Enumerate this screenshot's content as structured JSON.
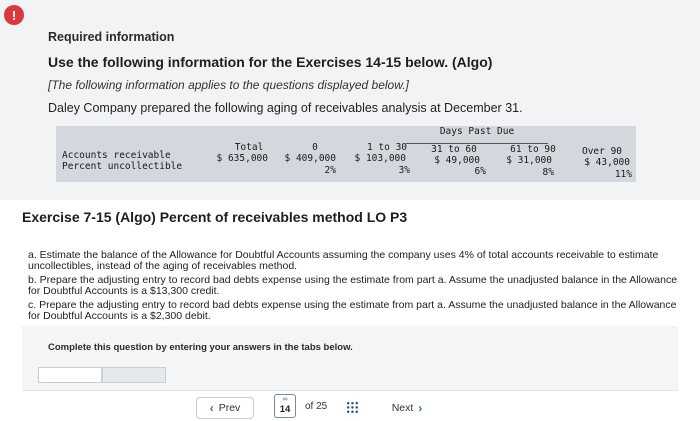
{
  "header": {
    "alert_glyph": "!",
    "required_title": "Required information",
    "use_following": "Use the following information for the Exercises 14-15 below. (Algo)",
    "applies_note": "[The following information applies to the questions displayed below.]",
    "intro": "Daley Company prepared the following aging of receivables analysis at December 31."
  },
  "aging_table": {
    "group_header": "Days Past Due",
    "row_labels": [
      "Accounts receivable",
      "Percent uncollectible"
    ],
    "columns": [
      {
        "header": "Total",
        "amount": "$ 635,000",
        "percent": ""
      },
      {
        "header": "0",
        "amount": "$ 409,000",
        "percent": "2%"
      },
      {
        "header": "1 to 30",
        "amount": "$ 103,000",
        "percent": "3%"
      },
      {
        "header": "31 to 60",
        "amount": "$ 49,000",
        "percent": "6%"
      },
      {
        "header": "61 to 90",
        "amount": "$ 31,000",
        "percent": "8%"
      },
      {
        "header": "Over 90",
        "amount": "$ 43,000",
        "percent": "11%"
      }
    ]
  },
  "exercise": {
    "title": "Exercise 7-15 (Algo) Percent of receivables method LO P3",
    "parts": [
      "a. Estimate the balance of the Allowance for Doubtful Accounts assuming the company uses 4% of total accounts receivable to estimate uncollectibles, instead of the aging of receivables method.",
      "b. Prepare the adjusting entry to record bad debts expense using the estimate from part a. Assume the unadjusted balance in the Allowance for Doubtful Accounts is a $13,300 credit.",
      "c. Prepare the adjusting entry to record bad debts expense using the estimate from part a. Assume the unadjusted balance in the Allowance for Doubtful Accounts is a $2,300 debit."
    ],
    "instruction": "Complete this question by entering your answers in the tabs below."
  },
  "navigation": {
    "prev_label": "Prev",
    "next_label": "Next",
    "current_page": "14",
    "of_total": "of 25",
    "link_glyph": "∞",
    "prev_icon": "chevron-left-icon",
    "next_icon": "chevron-right-icon",
    "accent_color": "#2a6ebb"
  }
}
